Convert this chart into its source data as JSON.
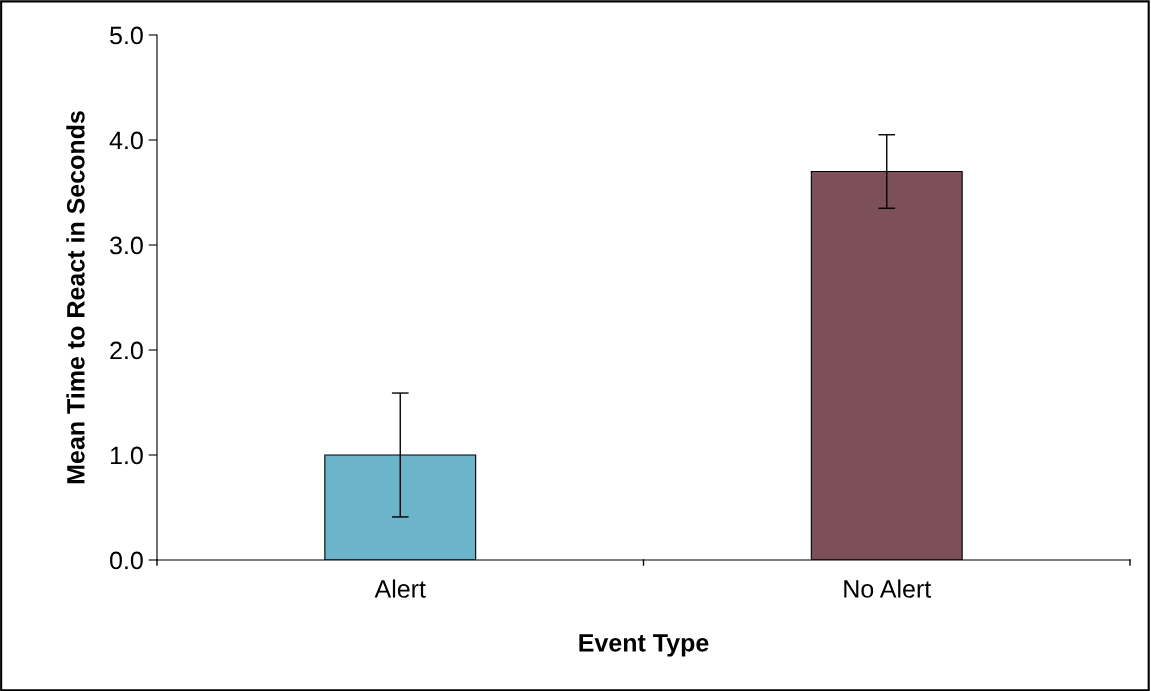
{
  "chart_data": {
    "type": "bar",
    "xlabel": "Event Type",
    "ylabel": "Mean Time to React in Seconds",
    "categories": [
      "Alert",
      "No Alert"
    ],
    "values": [
      1.0,
      3.7
    ],
    "colors": [
      "#6bb4c9",
      "#7d4f58"
    ],
    "errors": [
      0.59,
      0.35
    ],
    "ylim": [
      0,
      5
    ],
    "yticks": [
      {
        "value": 0,
        "label": "0.0"
      },
      {
        "value": 1,
        "label": "1.0"
      },
      {
        "value": 2,
        "label": "2.0"
      },
      {
        "value": 3,
        "label": "3.0"
      },
      {
        "value": 4,
        "label": "4.0"
      },
      {
        "value": 5,
        "label": "5.0"
      }
    ],
    "grid": false,
    "legend": false
  }
}
